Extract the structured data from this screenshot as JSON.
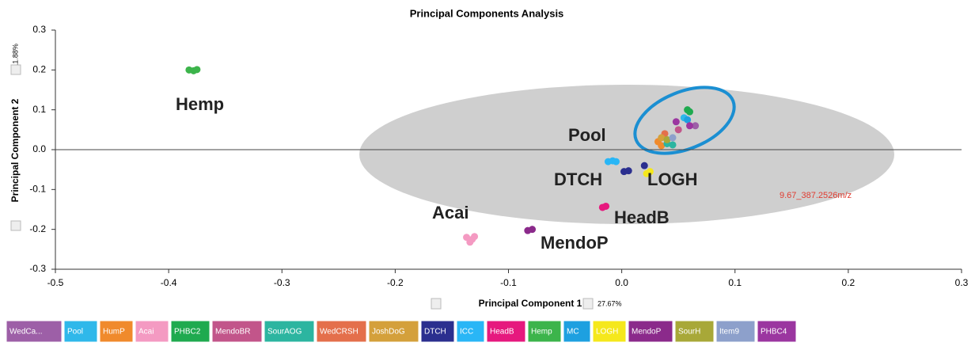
{
  "chart_data": {
    "type": "scatter",
    "title": "Principal Components Analysis",
    "xlabel": "Principal Component 1",
    "xlabel_note": "27.67%",
    "ylabel": "Principal Component 2",
    "ylabel_note": "11.88%",
    "xlim": [
      -0.5,
      0.3
    ],
    "xticks": [
      -0.5,
      -0.4,
      -0.3,
      -0.2,
      -0.1,
      {
        "value": 0,
        "label": "0.0"
      },
      0.1,
      0.2,
      0.3
    ],
    "ylim": [
      -0.3,
      0.3
    ],
    "yticks": [
      0.3,
      0.2,
      0.1,
      {
        "value": 0,
        "label": "0.0"
      },
      -0.1,
      -0.2,
      -0.3
    ],
    "annotations": [
      "Hemp",
      "Pool",
      "DTCH",
      "LOGH",
      "Acai",
      "HeadB",
      "MendoP",
      "9.67_387.2526m/z"
    ],
    "series": [
      {
        "name": "WedCa...",
        "color": "#9d5fa7",
        "x": [
          0.065
        ],
        "y": [
          0.06
        ]
      },
      {
        "name": "Pool",
        "color": "#2fb8ea",
        "x": [
          0.055
        ],
        "y": [
          0.08
        ]
      },
      {
        "name": "HumP",
        "color": "#f08a2c",
        "x": [
          0.032,
          0.035
        ],
        "y": [
          0.02,
          0.01
        ]
      },
      {
        "name": "Acai",
        "color": "#f49ac2",
        "x": [
          -0.137,
          -0.132,
          -0.134,
          -0.13
        ],
        "y": [
          -0.22,
          -0.225,
          -0.232,
          -0.218
        ]
      },
      {
        "name": "PHBC2",
        "color": "#1faa4f",
        "x": [
          0.058,
          0.06
        ],
        "y": [
          0.1,
          0.095
        ]
      },
      {
        "name": "MendoBR",
        "color": "#c2558a",
        "x": [
          0.05
        ],
        "y": [
          0.05
        ]
      },
      {
        "name": "SourAOG",
        "color": "#2cb5a0",
        "x": [
          0.04,
          0.045
        ],
        "y": [
          0.015,
          0.012
        ]
      },
      {
        "name": "WedCRSH",
        "color": "#e46f4b",
        "x": [
          0.038
        ],
        "y": [
          0.04
        ]
      },
      {
        "name": "JoshDoG",
        "color": "#d4a03b",
        "x": [
          0.035
        ],
        "y": [
          0.03
        ]
      },
      {
        "name": "DTCH",
        "color": "#2b2f8f",
        "x": [
          0.002,
          0.006,
          0.02
        ],
        "y": [
          -0.055,
          -0.053,
          -0.04
        ]
      },
      {
        "name": "ICC",
        "color": "#29b6f6",
        "x": [
          -0.012,
          -0.008,
          -0.005
        ],
        "y": [
          -0.03,
          -0.028,
          -0.03
        ]
      },
      {
        "name": "HeadB",
        "color": "#e6197e",
        "x": [
          -0.017,
          -0.014
        ],
        "y": [
          -0.145,
          -0.142
        ]
      },
      {
        "name": "Hemp",
        "color": "#3cb44b",
        "x": [
          -0.382,
          -0.378,
          -0.375
        ],
        "y": [
          0.2,
          0.198,
          0.201
        ]
      },
      {
        "name": "MC",
        "color": "#1ea0e0",
        "x": [
          0.058
        ],
        "y": [
          0.075
        ]
      },
      {
        "name": "LOGH",
        "color": "#f5e81c",
        "x": [
          0.022,
          0.025
        ],
        "y": [
          -0.06,
          -0.055
        ]
      },
      {
        "name": "MendoP",
        "color": "#8b2a8b",
        "x": [
          -0.083,
          -0.079
        ],
        "y": [
          -0.203,
          -0.2
        ]
      },
      {
        "name": "SourH",
        "color": "#a8a838",
        "x": [
          0.04
        ],
        "y": [
          0.025
        ]
      },
      {
        "name": "Item9",
        "color": "#8da0cb",
        "x": [
          0.045
        ],
        "y": [
          0.03
        ]
      },
      {
        "name": "PHBC4",
        "color": "#9b36a0",
        "x": [
          0.06,
          0.048
        ],
        "y": [
          0.06,
          0.07
        ]
      }
    ]
  }
}
